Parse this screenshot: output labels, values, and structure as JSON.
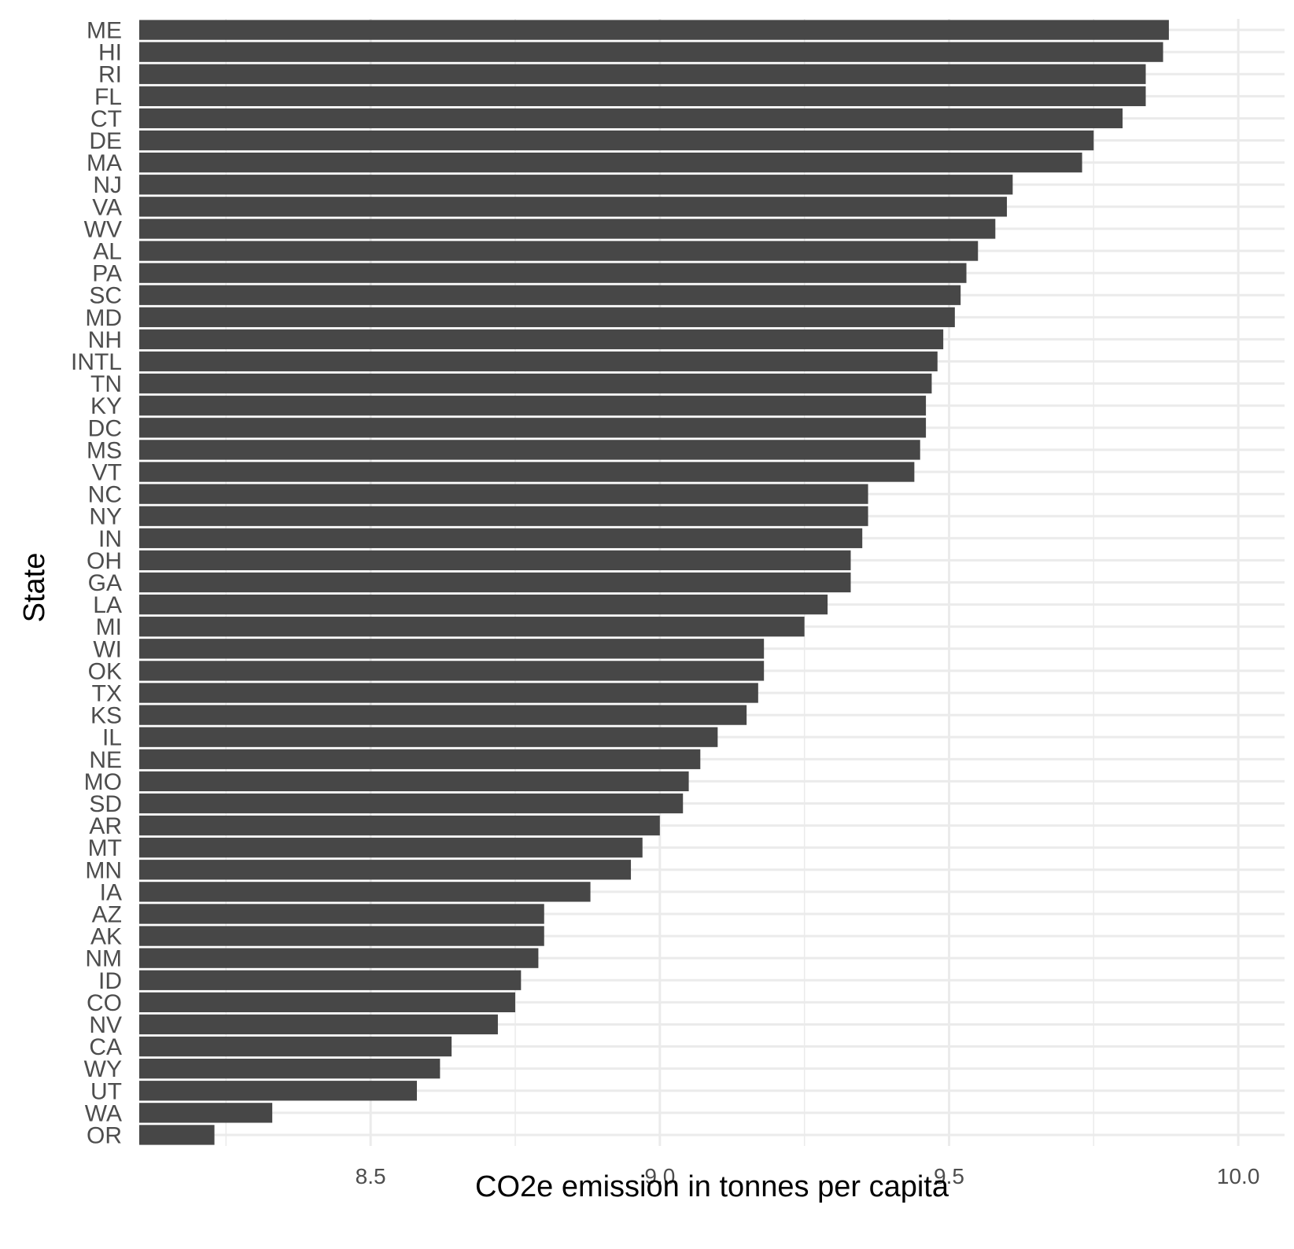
{
  "chart_data": {
    "type": "bar",
    "orientation": "horizontal",
    "title": "",
    "xlabel": "CO2e emission in tonnes per capita",
    "ylabel": "State",
    "xlim": [
      8.1,
      10.08
    ],
    "x_ticks": [
      8.5,
      9.0,
      9.5,
      10.0
    ],
    "x_tick_labels": [
      "8.5",
      "9.0",
      "9.5",
      "10.0"
    ],
    "grid": true,
    "legend": "none",
    "categories": [
      "ME",
      "HI",
      "RI",
      "FL",
      "CT",
      "DE",
      "MA",
      "NJ",
      "VA",
      "WV",
      "AL",
      "PA",
      "SC",
      "MD",
      "NH",
      "INTL",
      "TN",
      "KY",
      "DC",
      "MS",
      "VT",
      "NC",
      "NY",
      "IN",
      "OH",
      "GA",
      "LA",
      "MI",
      "WI",
      "OK",
      "TX",
      "KS",
      "IL",
      "NE",
      "MO",
      "SD",
      "AR",
      "MT",
      "MN",
      "IA",
      "AZ",
      "AK",
      "NM",
      "ID",
      "CO",
      "NV",
      "CA",
      "WY",
      "UT",
      "WA",
      "OR"
    ],
    "values": [
      9.88,
      9.87,
      9.84,
      9.84,
      9.8,
      9.75,
      9.73,
      9.61,
      9.6,
      9.58,
      9.55,
      9.53,
      9.52,
      9.51,
      9.49,
      9.48,
      9.47,
      9.46,
      9.46,
      9.45,
      9.44,
      9.36,
      9.36,
      9.35,
      9.33,
      9.33,
      9.29,
      9.25,
      9.18,
      9.18,
      9.17,
      9.15,
      9.1,
      9.07,
      9.05,
      9.04,
      9.0,
      8.97,
      8.95,
      8.88,
      8.8,
      8.8,
      8.79,
      8.76,
      8.75,
      8.72,
      8.64,
      8.62,
      8.58,
      8.33,
      8.23
    ],
    "colors": {
      "bar": "#474747",
      "grid": "#ebebeb",
      "background": "#ffffff",
      "tick_text": "#4d4d4d",
      "title_text": "#000000"
    }
  }
}
